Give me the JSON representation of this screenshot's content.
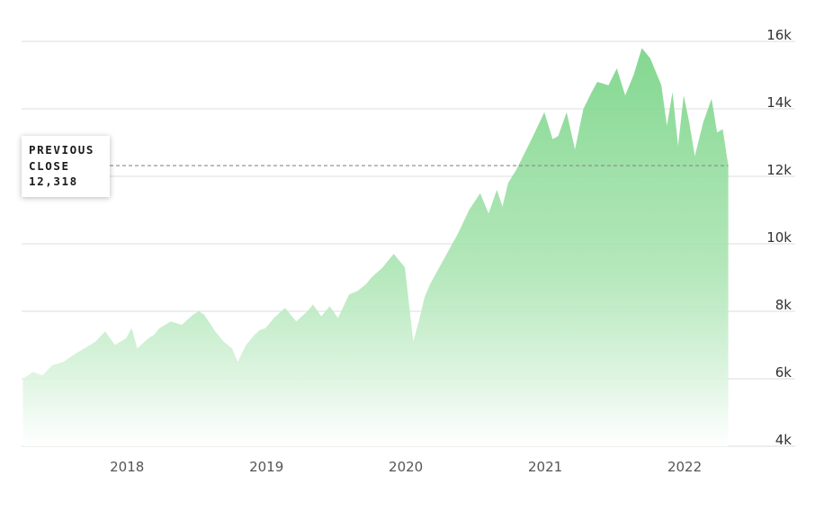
{
  "chart_data": {
    "type": "area",
    "title": "",
    "xlabel": "",
    "ylabel": "",
    "ylim": [
      4000,
      16000
    ],
    "y_ticks": [
      4000,
      6000,
      8000,
      10000,
      12000,
      14000,
      16000
    ],
    "y_tick_labels": [
      "4k",
      "6k",
      "8k",
      "10k",
      "12k",
      "14k",
      "16k"
    ],
    "x_tick_labels": [
      "2018",
      "2019",
      "2020",
      "2021",
      "2022"
    ],
    "x_ticks": [
      2018.0,
      2019.0,
      2020.0,
      2021.0,
      2022.0
    ],
    "xlim": [
      2017.25,
      2022.8
    ],
    "grid": true,
    "fill_color": "#7fd68c",
    "series": [
      {
        "x": [
          2017.26,
          2017.33,
          2017.4,
          2017.47,
          2017.55,
          2017.62,
          2017.7,
          2017.78,
          2017.85,
          2017.92,
          2018.0,
          2018.04,
          2018.08,
          2018.16,
          2018.2,
          2018.24,
          2018.32,
          2018.4,
          2018.48,
          2018.52,
          2018.56,
          2018.64,
          2018.7,
          2018.76,
          2018.8,
          2018.86,
          2018.92,
          2018.96,
          2019.0,
          2019.06,
          2019.14,
          2019.22,
          2019.3,
          2019.34,
          2019.4,
          2019.46,
          2019.52,
          2019.6,
          2019.66,
          2019.72,
          2019.76,
          2019.84,
          2019.92,
          2020.0,
          2020.06,
          2020.1,
          2020.14,
          2020.18,
          2020.22,
          2020.3,
          2020.38,
          2020.46,
          2020.54,
          2020.6,
          2020.66,
          2020.7,
          2020.74,
          2020.8,
          2020.86,
          2020.92,
          2021.0,
          2021.06,
          2021.1,
          2021.16,
          2021.22,
          2021.28,
          2021.34,
          2021.38,
          2021.46,
          2021.52,
          2021.58,
          2021.64,
          2021.7,
          2021.76,
          2021.8,
          2021.84,
          2021.88,
          2021.92,
          2021.96,
          2022.0,
          2022.04,
          2022.08,
          2022.14,
          2022.2,
          2022.24,
          2022.28,
          2022.32
        ],
        "values": [
          6000,
          6200,
          6100,
          6400,
          6500,
          6700,
          6900,
          7100,
          7400,
          7000,
          7200,
          7500,
          6900,
          7200,
          7300,
          7500,
          7700,
          7600,
          7900,
          8000,
          7900,
          7400,
          7100,
          6900,
          6500,
          7000,
          7300,
          7450,
          7500,
          7800,
          8100,
          7700,
          8000,
          8200,
          7850,
          8150,
          7800,
          8500,
          8600,
          8800,
          9000,
          9300,
          9700,
          9300,
          7100,
          7700,
          8400,
          8800,
          9100,
          9700,
          10300,
          11000,
          11500,
          10900,
          11600,
          11100,
          11800,
          12200,
          12700,
          13200,
          13900,
          13100,
          13200,
          13900,
          12800,
          14000,
          14500,
          14800,
          14700,
          15200,
          14400,
          15000,
          15800,
          15500,
          15100,
          14700,
          13500,
          14500,
          12900,
          14400,
          13600,
          12600,
          13600,
          14300,
          13300,
          13400,
          12318
        ]
      }
    ],
    "reference_line": {
      "label_lines": [
        "PREVIOUS",
        "CLOSE",
        "12,318"
      ],
      "value": 12318
    }
  }
}
